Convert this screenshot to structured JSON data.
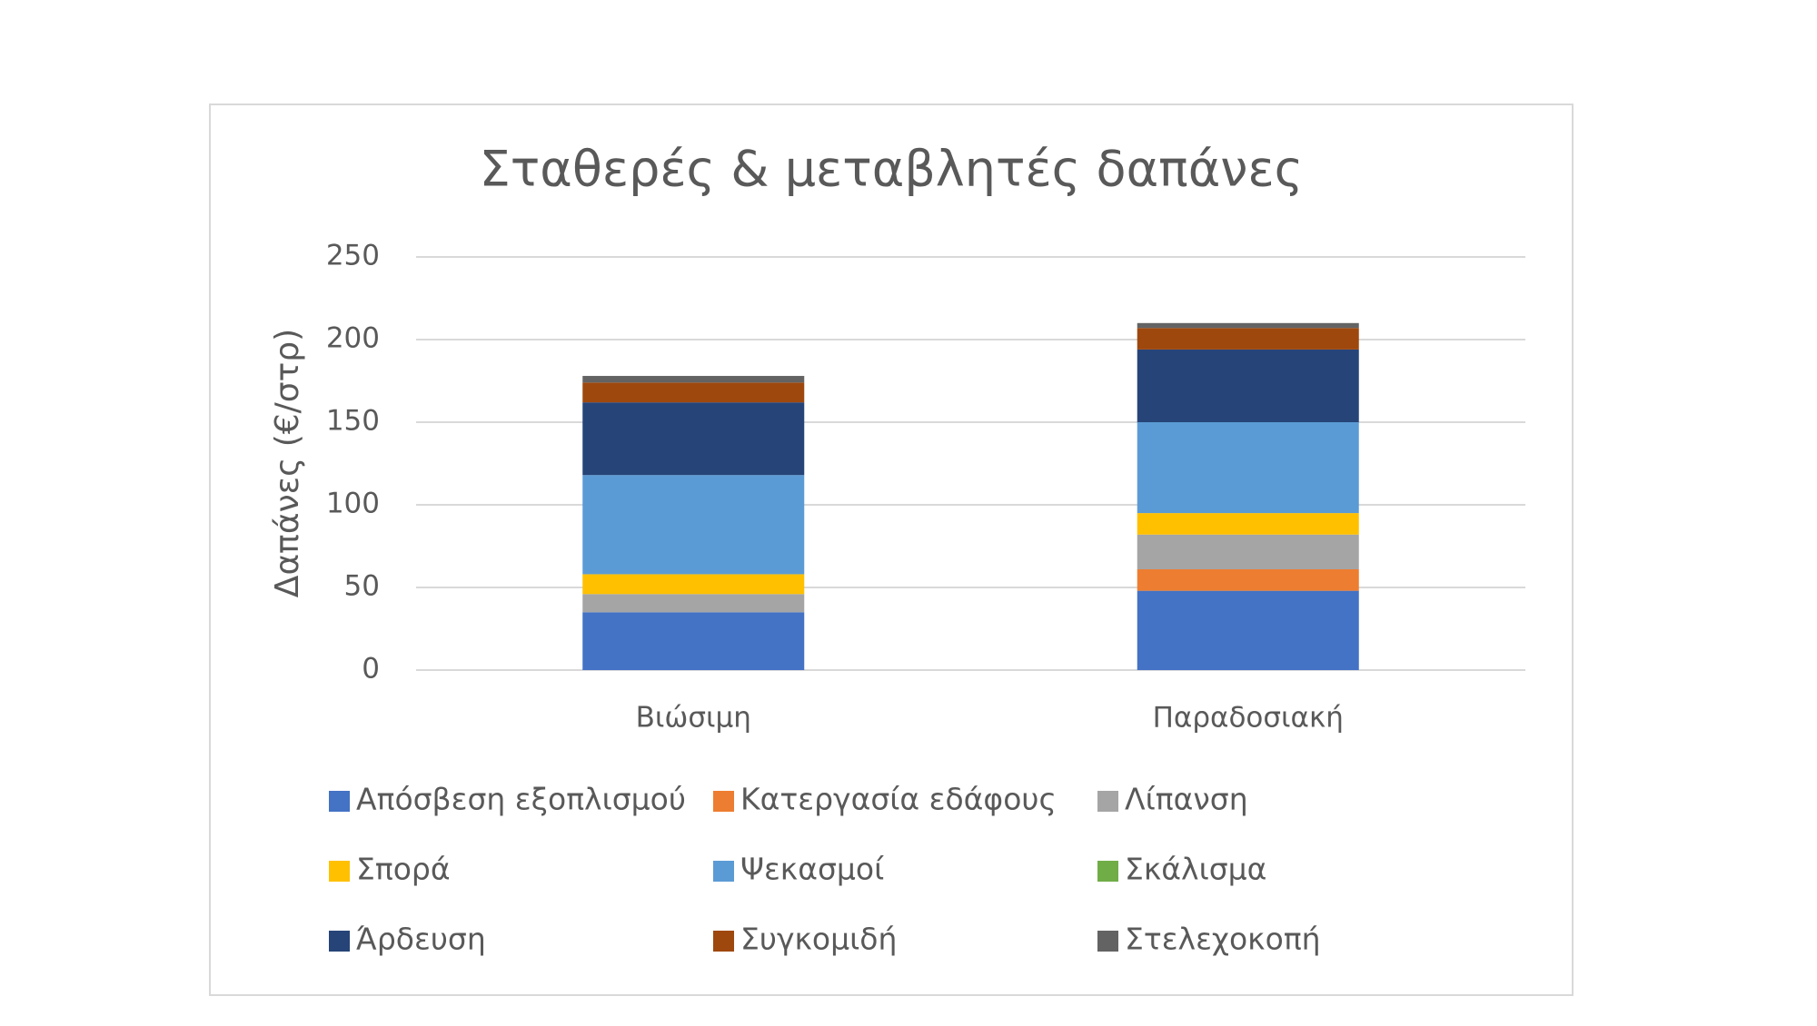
{
  "chart_data": {
    "type": "stacked_bar",
    "title": "Σταθερές & μεταβλητές δαπάνες",
    "y_label": "Δαπάνες (€/στρ)",
    "categories": [
      "Βιώσιμη",
      "Παραδοσιακή"
    ],
    "series": [
      {
        "name": "Απόσβεση εξοπλισμού",
        "color": "#4472c4",
        "values": [
          35,
          48
        ]
      },
      {
        "name": "Κατεργασία εδάφους",
        "color": "#ed7d31",
        "values": [
          0,
          13
        ]
      },
      {
        "name": "Λίπανση",
        "color": "#a5a5a5",
        "values": [
          11,
          21
        ]
      },
      {
        "name": "Σπορά",
        "color": "#ffc000",
        "values": [
          12,
          13
        ]
      },
      {
        "name": "Ψεκασμοί",
        "color": "#5b9bd5",
        "values": [
          60,
          55
        ]
      },
      {
        "name": "Σκάλισμα",
        "color": "#70ad47",
        "values": [
          0,
          0
        ]
      },
      {
        "name": "Άρδευση",
        "color": "#264478",
        "values": [
          44,
          44
        ]
      },
      {
        "name": "Συγκομιδή",
        "color": "#9e480e",
        "values": [
          12,
          13
        ]
      },
      {
        "name": "Στελεχοκοπή",
        "color": "#636363",
        "values": [
          4,
          3
        ]
      }
    ],
    "ylim": [
      0,
      250
    ],
    "yticks": [
      0,
      50,
      100,
      150,
      200,
      250
    ],
    "grid": true,
    "legend": "bottom"
  }
}
